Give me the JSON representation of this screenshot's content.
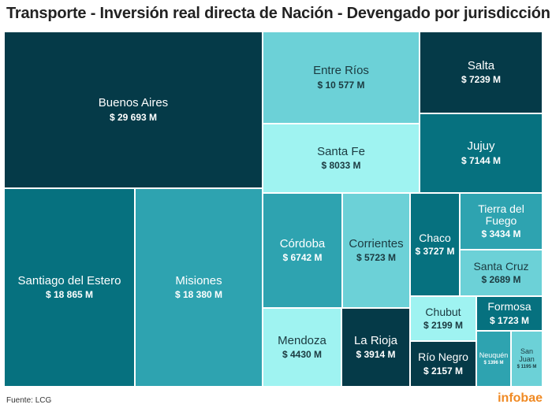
{
  "title": "Transporte - Inversión real directa de Nación - Devengado por jurisdicción",
  "source": "Fuente: LCG",
  "brand": "infobae",
  "colors": {
    "dark": "#053a48",
    "teal_deep": "#06717f",
    "teal": "#2ea3b0",
    "mid": "#6cd1d7",
    "light": "#9ff3f1"
  },
  "chart_data": {
    "type": "treemap",
    "title": "Transporte - Inversión real directa de Nación - Devengado por jurisdicción",
    "items": [
      {
        "name": "Buenos Aires",
        "value": 29693,
        "label": "$ 29 693 M",
        "color": "#053a48"
      },
      {
        "name": "Santiago del Estero",
        "value": 18865,
        "label": "$ 18 865 M",
        "color": "#06717f"
      },
      {
        "name": "Misiones",
        "value": 18380,
        "label": "$ 18 380 M",
        "color": "#2ea3b0"
      },
      {
        "name": "Entre Ríos",
        "value": 10577,
        "label": "$ 10 577 M",
        "color": "#6cd1d7"
      },
      {
        "name": "Santa Fe",
        "value": 8033,
        "label": "$ 8033 M",
        "color": "#9ff3f1"
      },
      {
        "name": "Salta",
        "value": 7239,
        "label": "$ 7239 M",
        "color": "#053a48"
      },
      {
        "name": "Jujuy",
        "value": 7144,
        "label": "$ 7144 M",
        "color": "#06717f"
      },
      {
        "name": "Córdoba",
        "value": 6742,
        "label": "$ 6742 M",
        "color": "#2ea3b0"
      },
      {
        "name": "Corrientes",
        "value": 5723,
        "label": "$ 5723 M",
        "color": "#6cd1d7"
      },
      {
        "name": "Mendoza",
        "value": 4430,
        "label": "$ 4430 M",
        "color": "#9ff3f1"
      },
      {
        "name": "La Rioja",
        "value": 3914,
        "label": "$ 3914 M",
        "color": "#053a48"
      },
      {
        "name": "Chaco",
        "value": 3727,
        "label": "$ 3727 M",
        "color": "#06717f"
      },
      {
        "name": "Tierra del Fuego",
        "value": 3434,
        "label": "$ 3434 M",
        "color": "#2ea3b0"
      },
      {
        "name": "Santa Cruz",
        "value": 2689,
        "label": "$ 2689 M",
        "color": "#6cd1d7"
      },
      {
        "name": "Chubut",
        "value": 2199,
        "label": "$ 2199 M",
        "color": "#9ff3f1"
      },
      {
        "name": "Río Negro",
        "value": 2157,
        "label": "$ 2157 M",
        "color": "#053a48"
      },
      {
        "name": "Formosa",
        "value": 1723,
        "label": "$ 1723 M",
        "color": "#06717f"
      },
      {
        "name": "Neuquén",
        "value": 1396,
        "label": "$ 1396 M",
        "color": "#2ea3b0"
      },
      {
        "name": "San Juan",
        "value": 1195,
        "label": "$ 1195 M",
        "color": "#6cd1d7"
      }
    ]
  }
}
